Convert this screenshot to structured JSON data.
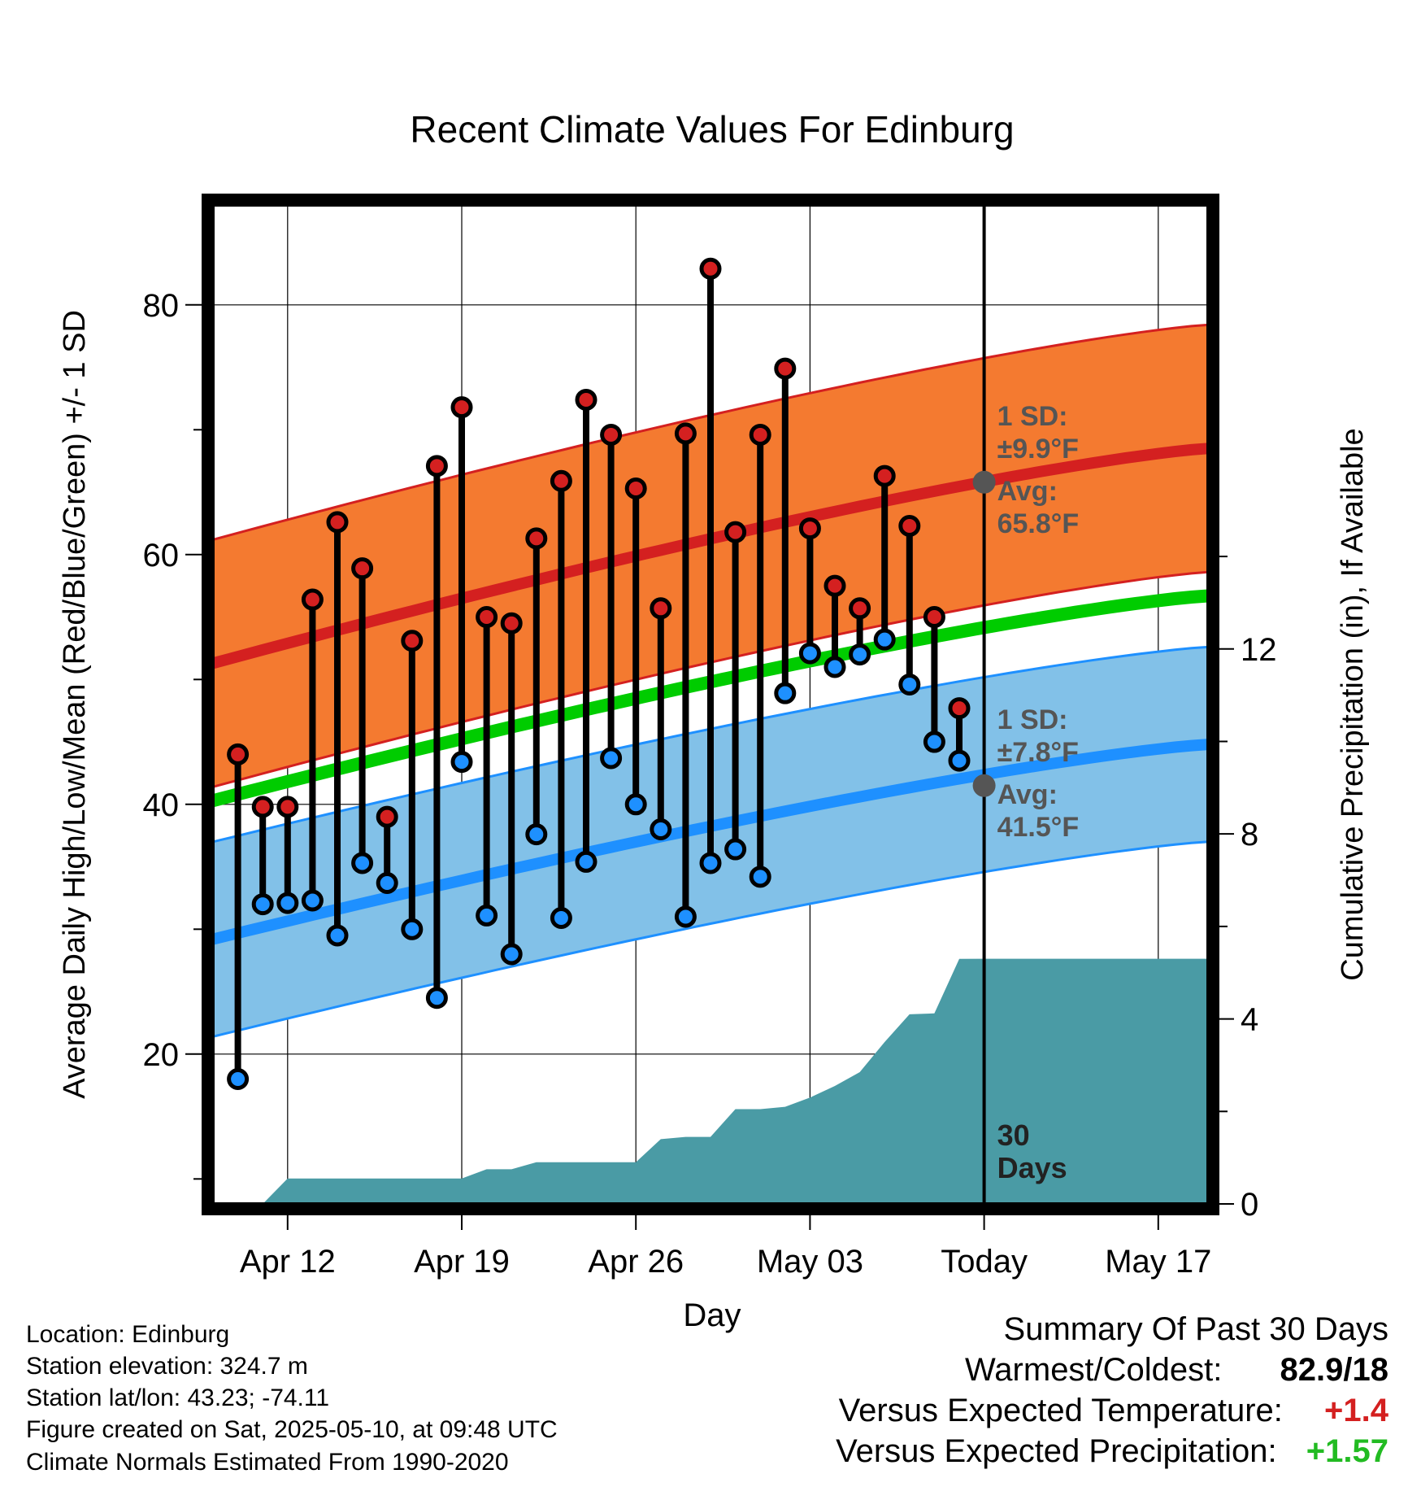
{
  "chart_data": {
    "type": "line",
    "title": "Recent Climate Values For Edinburg",
    "xlabel": "Day",
    "ylabel": "Average Daily High/Low/Mean (Red/Blue/Green) +/- 1 SD",
    "y2label": "Cumulative Precipitation (in), If Available",
    "ylim": [
      8,
      88
    ],
    "y2lim": [
      0,
      21.6
    ],
    "yticks": [
      20,
      40,
      60,
      80
    ],
    "y2ticks": [
      0,
      4,
      8,
      12
    ],
    "x_tick_labels": [
      "Apr 12",
      "Apr 19",
      "Apr 26",
      "May 03",
      "Today",
      "May 17"
    ],
    "x_tick_dates": [
      "2025-04-12",
      "2025-04-19",
      "2025-04-26",
      "2025-05-03",
      "2025-05-10",
      "2025-05-17"
    ],
    "xlim": [
      "2025-04-09",
      "2025-05-19"
    ],
    "today": "2025-05-10",
    "today_label": "Today",
    "days": [
      "2025-04-10",
      "2025-04-11",
      "2025-04-12",
      "2025-04-13",
      "2025-04-14",
      "2025-04-15",
      "2025-04-16",
      "2025-04-17",
      "2025-04-18",
      "2025-04-19",
      "2025-04-20",
      "2025-04-21",
      "2025-04-22",
      "2025-04-23",
      "2025-04-24",
      "2025-04-25",
      "2025-04-26",
      "2025-04-27",
      "2025-04-28",
      "2025-04-29",
      "2025-04-30",
      "2025-05-01",
      "2025-05-02",
      "2025-05-03",
      "2025-05-04",
      "2025-05-05",
      "2025-05-06",
      "2025-05-07",
      "2025-05-08",
      "2025-05-09"
    ],
    "daily_high": [
      44,
      39.8,
      39.8,
      56.4,
      62.6,
      58.9,
      39,
      53.1,
      67.1,
      71.8,
      55,
      54.5,
      61.3,
      65.9,
      72.4,
      69.6,
      65.3,
      55.7,
      69.7,
      82.9,
      61.8,
      69.6,
      74.9,
      62.1,
      57.5,
      55.7,
      66.3,
      62.3,
      55,
      47.7
    ],
    "daily_low": [
      18,
      32,
      32.1,
      32.3,
      29.5,
      35.3,
      33.7,
      30,
      24.5,
      43.4,
      31.1,
      28,
      37.6,
      30.9,
      35.4,
      43.7,
      40,
      38,
      31,
      35.3,
      36.4,
      34.2,
      48.9,
      52.1,
      51,
      52,
      53.2,
      49.6,
      45,
      43.5
    ],
    "normal_high": {
      "start": 51.3,
      "end": 68.5,
      "sd": 9.9
    },
    "normal_low": {
      "start": 29.2,
      "end": 44.8,
      "sd": 7.8
    },
    "normal_mean": {
      "start": 40.3,
      "end": 56.7
    },
    "cumulative_precip": [
      0,
      0,
      0.55,
      0.55,
      0.55,
      0.55,
      0.55,
      0.55,
      0.55,
      0.55,
      0.75,
      0.75,
      0.9,
      0.9,
      0.9,
      0.9,
      0.9,
      1.4,
      1.45,
      1.45,
      2.05,
      2.05,
      2.1,
      2.3,
      2.55,
      2.85,
      3.5,
      4.1,
      4.12,
      5.3
    ],
    "precip_final": 5.3,
    "today_markers": {
      "high": {
        "sd_label": "1 SD:",
        "sd_value": "±9.9°F",
        "avg_label": "Avg:",
        "avg_value": "65.8°F",
        "avg": 65.8
      },
      "low": {
        "sd_label": "1 SD:",
        "sd_value": "±7.8°F",
        "avg_label": "Avg:",
        "avg_value": "41.5°F",
        "avg": 41.5
      }
    },
    "days_label_line1": "30",
    "days_label_line2": "Days",
    "colors": {
      "high": "#d42020",
      "low": "#1e90ff",
      "mean": "#00cc00",
      "high_band": "#f47a30",
      "low_band": "#82c1e8",
      "precip": "#4a9ba5",
      "marker_text": "#555555"
    },
    "grid": true
  },
  "info": {
    "location": "Location: Edinburg",
    "elevation": "Station elevation: 324.7 m",
    "latlon": "Station lat/lon: 43.23; -74.11",
    "created": "Figure created on Sat, 2025-05-10, at 09:48 UTC",
    "normals": "Climate Normals Estimated From 1990-2020"
  },
  "summary": {
    "title": "Summary Of Past 30 Days",
    "warm_cold_label": "Warmest/Coldest:",
    "warm_cold_value": "82.9/18",
    "temp_label": "Versus Expected Temperature:",
    "temp_value": "+1.4",
    "temp_color": "#d42020",
    "precip_label": "Versus Expected Precipitation:",
    "precip_value": "+1.57",
    "precip_color": "#22bb22"
  }
}
